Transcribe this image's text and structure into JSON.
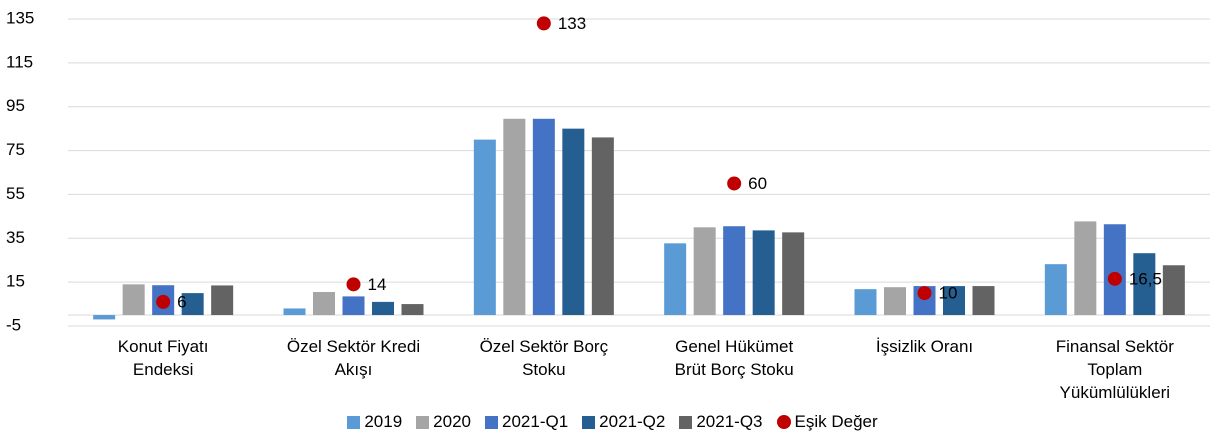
{
  "chart_data": {
    "type": "bar",
    "categories": [
      "Konut Fiyatı\nEndeksi",
      "Özel Sektör Kredi\nAkışı",
      "Özel Sektör Borç\nStoku",
      "Genel Hükümet\nBrüt Borç Stoku",
      "İşsizlik Oranı",
      "Finansal Sektör\nToplam\nYükümlülükleri"
    ],
    "series": [
      {
        "name": "2019",
        "color": "#5b9bd5",
        "values": [
          -2,
          3,
          80,
          32.7,
          11.8,
          23.2
        ]
      },
      {
        "name": "2020",
        "color": "#a5a5a5",
        "values": [
          14,
          10.5,
          89.5,
          40,
          12.7,
          42.7
        ]
      },
      {
        "name": "2021-Q1",
        "color": "#4472c4",
        "values": [
          13.6,
          8.5,
          89.5,
          40.5,
          13.2,
          41.4
        ]
      },
      {
        "name": "2021-Q2",
        "color": "#255e91",
        "values": [
          10,
          6,
          85,
          38.6,
          13.2,
          28.2
        ]
      },
      {
        "name": "2021-Q3",
        "color": "#636363",
        "values": [
          13.5,
          5,
          81,
          37.7,
          13.2,
          22.7
        ]
      },
      {
        "name": "Eşik Değer",
        "type": "scatter",
        "color": "#c00000",
        "values": [
          6,
          14,
          133,
          60,
          10,
          16.5
        ],
        "value_labels": [
          "6",
          "14",
          "133",
          "60",
          "10",
          "16,5"
        ]
      }
    ],
    "ylim": [
      -5,
      135
    ],
    "yticks": [
      -5,
      15,
      35,
      55,
      75,
      95,
      115,
      135
    ],
    "grid": true
  }
}
